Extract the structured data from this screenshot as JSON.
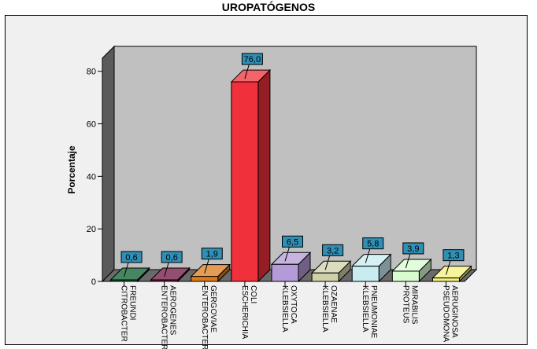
{
  "chart_data": {
    "type": "bar",
    "title": "UROPATÓGENOS",
    "xlabel": "",
    "ylabel": "Porcentaje",
    "ylim": [
      0,
      85
    ],
    "yticks": [
      0,
      20,
      40,
      60,
      80
    ],
    "categories": [
      [
        "CITROBACTER",
        "FREUNDI"
      ],
      [
        "ENTEROBACTER",
        "AEROGENES"
      ],
      [
        "ENTEROBACTER",
        "GERGOVIAE"
      ],
      [
        "ESCHERICHIA",
        "COLI"
      ],
      [
        "KLEBSIELLA",
        "OXYTOCA"
      ],
      [
        "KLEBSIELLA",
        "OZAENAE"
      ],
      [
        "KLEBSIELLA",
        "PNEUMONIAE"
      ],
      [
        "PROTEUS",
        "MIRABILIS"
      ],
      [
        "PSEUDOMONA",
        "AERUGINOSA"
      ]
    ],
    "values": [
      0.6,
      0.6,
      1.9,
      76.0,
      6.5,
      3.2,
      5.8,
      3.9,
      1.3
    ],
    "value_labels": [
      "0,6",
      "0,6",
      "1,9",
      "76,0",
      "6,5",
      "3,2",
      "5,8",
      "3,9",
      "1,3"
    ],
    "colors": [
      "#0b5e2e",
      "#6e1440",
      "#d97a1c",
      "#f0303a",
      "#b49ad6",
      "#cfcfa8",
      "#c8ecf0",
      "#d8fcd0",
      "#f3f07c"
    ],
    "data_label_color": "#2f8fb5",
    "grid": false,
    "legend": "none",
    "style": "3d"
  }
}
